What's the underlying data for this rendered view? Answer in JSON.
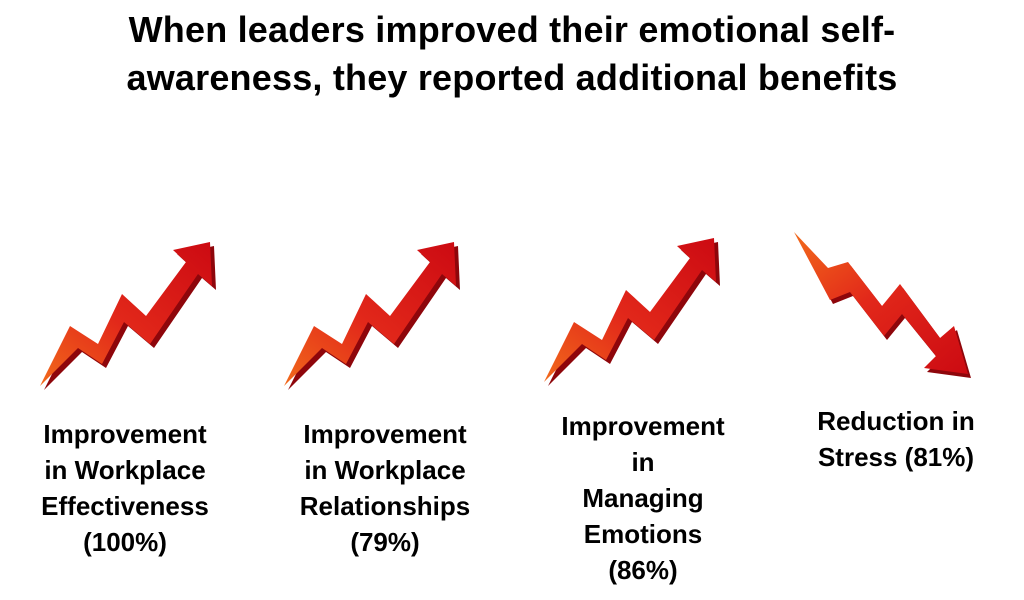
{
  "title": {
    "line1": "When leaders improved their emotional self-",
    "line2": "awareness, they reported additional benefits"
  },
  "benefits": [
    {
      "direction": "up",
      "lines": [
        "Improvement",
        "in Workplace",
        "Effectiveness",
        "(100%)"
      ],
      "percent": 100
    },
    {
      "direction": "up",
      "lines": [
        "Improvement",
        "in Workplace",
        "Relationships",
        "(79%)"
      ],
      "percent": 79
    },
    {
      "direction": "up",
      "lines": [
        "Improvement",
        "in",
        "Managing",
        "Emotions",
        "(86%)"
      ],
      "percent": 86
    },
    {
      "direction": "down",
      "lines": [
        "Reduction in",
        "Stress (81%)"
      ],
      "percent": 81
    }
  ],
  "colors": {
    "arrow_tail": "#f26a1b",
    "arrow_mid": "#e2281a",
    "arrow_head": "#cc0a12",
    "arrow_shadow": "#8e060b",
    "text": "#000000",
    "background": "#ffffff"
  }
}
